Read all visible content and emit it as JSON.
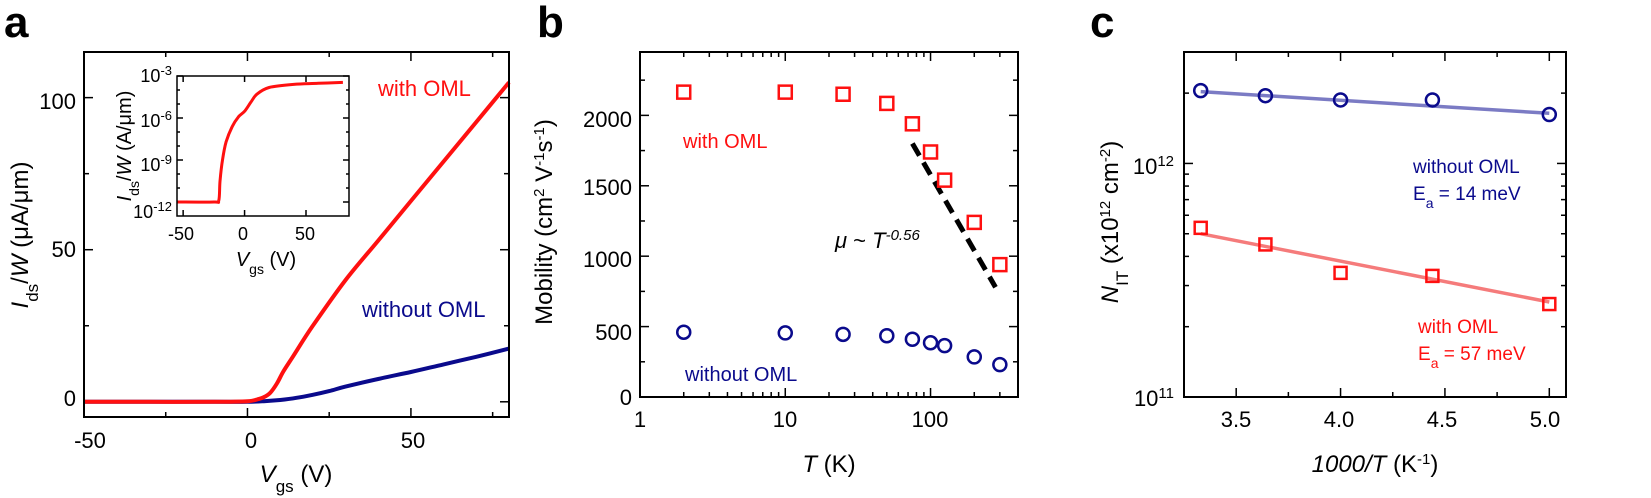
{
  "colors": {
    "red": "#ff1010",
    "navy": "#0a0a8c",
    "blue_fit": "#7b7bc4",
    "red_fit": "#f57b7b",
    "black": "#000000"
  },
  "panel_a": {
    "letter": "a",
    "ylabel": {
      "main": "I",
      "sub": "ds",
      "rest": "/",
      "w": "W",
      "unit": " (μA/μm)"
    },
    "xlabel": {
      "main": "V",
      "sub": "gs",
      "unit": " (V)"
    },
    "legend_with": "with OML",
    "legend_without": "without OML",
    "xticks": [
      "-50",
      "0",
      "50"
    ],
    "yticks": [
      "0",
      "50",
      "100"
    ],
    "inset": {
      "ylabel": {
        "main": "I",
        "sub": "ds",
        "rest": "/",
        "w": "W",
        "unit": " (A/μm)"
      },
      "xlabel": {
        "main": "V",
        "sub": "gs",
        "unit": " (V)"
      },
      "xticks": [
        "-50",
        "0",
        "50"
      ],
      "yticks": [
        {
          "base": "10",
          "exp": "-12"
        },
        {
          "base": "10",
          "exp": "-9"
        },
        {
          "base": "10",
          "exp": "-6"
        },
        {
          "base": "10",
          "exp": "-3"
        }
      ]
    }
  },
  "panel_b": {
    "letter": "b",
    "ylabel": {
      "pre": "Mobility (cm",
      "e1": "2",
      "mid": " V",
      "e2": "-1",
      "s": "s",
      "e3": "-1",
      "post": ")"
    },
    "xlabel": {
      "main": "T",
      "unit": " (K)"
    },
    "legend_with": "with OML",
    "legend_without": "without OML",
    "annotation": {
      "mu": "μ",
      "tilde": " ~ ",
      "t": "T",
      "exp": "-0.56"
    },
    "xticks": [
      "1",
      "10",
      "100"
    ],
    "yticks": [
      "0",
      "500",
      "1000",
      "1500",
      "2000"
    ]
  },
  "panel_c": {
    "letter": "c",
    "ylabel": {
      "main": "N",
      "sub": "IT",
      "pre": " (x10",
      "exp": "12",
      "mid": " cm",
      "exp2": "-2",
      "post": ")"
    },
    "xlabel": {
      "main": "1000/T",
      "pre": " (K",
      "exp": "-1",
      "post": ")"
    },
    "legend_without": "without OML",
    "ea_without": {
      "e": "E",
      "sub": "a",
      "rest": " = 14 meV"
    },
    "legend_with": "with OML",
    "ea_with": {
      "e": "E",
      "sub": "a",
      "rest": " = 57 meV"
    },
    "xticks": [
      "3.5",
      "4.0",
      "4.5",
      "5.0"
    ],
    "yticks": [
      {
        "base": "10",
        "exp": "11"
      },
      {
        "base": "10",
        "exp": "12"
      }
    ]
  },
  "chart_data": [
    {
      "type": "line",
      "panel": "a",
      "xlabel": "Vgs (V)",
      "ylabel": "Ids/W (μA/μm)",
      "xlim": [
        -50,
        80
      ],
      "ylim": [
        -5,
        115
      ],
      "series": [
        {
          "name": "with OML",
          "color": "#ff1010",
          "x": [
            -50,
            -30,
            -10,
            0,
            3,
            5,
            7,
            9,
            11,
            14,
            20,
            30,
            40,
            50,
            60,
            70,
            80
          ],
          "y": [
            0,
            0,
            0,
            0.2,
            0.8,
            1.5,
            3,
            6,
            10,
            15,
            25,
            40,
            53,
            66,
            79,
            92,
            105
          ]
        },
        {
          "name": "without OML",
          "color": "#0a0a8c",
          "x": [
            -50,
            -10,
            0,
            5,
            10,
            15,
            20,
            25,
            30,
            40,
            50,
            60,
            70,
            80
          ],
          "y": [
            0,
            0,
            0,
            0.2,
            0.6,
            1.3,
            2.3,
            3.5,
            5,
            7.5,
            9.8,
            12.3,
            14.8,
            17.5
          ]
        }
      ]
    },
    {
      "type": "line",
      "panel": "a-inset",
      "xlabel": "Vgs (V)",
      "ylabel": "Ids/W (A/μm)",
      "log_y": true,
      "xlim": [
        -55,
        85
      ],
      "ylim": [
        1e-13,
        0.001
      ],
      "series": [
        {
          "name": "with OML",
          "color": "#ff1010",
          "x": [
            -55,
            -25,
            -21,
            -20,
            -18,
            -15,
            -10,
            -5,
            0,
            5,
            10,
            20,
            40,
            60,
            80
          ],
          "y": [
            1e-12,
            1e-12,
            1.3e-12,
            3e-11,
            1e-09,
            2e-08,
            2.5e-07,
            1.2e-06,
            3e-06,
            1.3e-05,
            5e-05,
            0.00015,
            0.00025,
            0.0003,
            0.00035
          ]
        }
      ]
    },
    {
      "type": "scatter",
      "panel": "b",
      "xlabel": "T (K)",
      "ylabel": "Mobility (cm2 V-1s-1)",
      "log_x": true,
      "xlim": [
        1,
        400
      ],
      "ylim": [
        0,
        2450
      ],
      "series": [
        {
          "name": "with OML",
          "color": "#ff1010",
          "marker": "square",
          "x": [
            2,
            10,
            25,
            50,
            75,
            100,
            125,
            200,
            300
          ],
          "y": [
            2165,
            2165,
            2150,
            2085,
            1940,
            1740,
            1540,
            1240,
            940
          ]
        },
        {
          "name": "without OML",
          "color": "#0a0a8c",
          "marker": "circle",
          "x": [
            2,
            10,
            25,
            50,
            75,
            100,
            125,
            200,
            300
          ],
          "y": [
            460,
            455,
            445,
            435,
            410,
            385,
            365,
            285,
            230
          ]
        },
        {
          "name": "μ ~ T^-0.56",
          "color": "#000000",
          "style": "dashed",
          "x": [
            75,
            280
          ],
          "y": [
            1800,
            780
          ]
        }
      ]
    },
    {
      "type": "scatter",
      "panel": "c",
      "xlabel": "1000/T (K-1)",
      "ylabel": "NIT (x10^12 cm-2)",
      "log_y": true,
      "xlim": [
        3.25,
        5.08
      ],
      "ylim": [
        100000000000.0,
        3000000000000.0
      ],
      "series": [
        {
          "name": "without OML",
          "color": "#0a0a8c",
          "marker": "circle",
          "x": [
            3.33,
            3.64,
            4.0,
            4.44,
            5.0
          ],
          "y": [
            2050000000000.0,
            1950000000000.0,
            1870000000000.0,
            1870000000000.0,
            1620000000000.0
          ]
        },
        {
          "name": "without OML fit",
          "color": "#7b7bc4",
          "style": "fit",
          "x": [
            3.33,
            5.0
          ],
          "y": [
            2030000000000.0,
            1640000000000.0
          ]
        },
        {
          "name": "with OML",
          "color": "#ff1010",
          "marker": "square",
          "x": [
            3.33,
            3.64,
            4.0,
            4.44,
            5.0
          ],
          "y": [
            530000000000.0,
            450000000000.0,
            340000000000.0,
            330000000000.0,
            250000000000.0
          ]
        },
        {
          "name": "with OML fit",
          "color": "#f57b7b",
          "style": "fit",
          "x": [
            3.33,
            5.0
          ],
          "y": [
            500000000000.0,
            255000000000.0
          ]
        }
      ]
    }
  ]
}
